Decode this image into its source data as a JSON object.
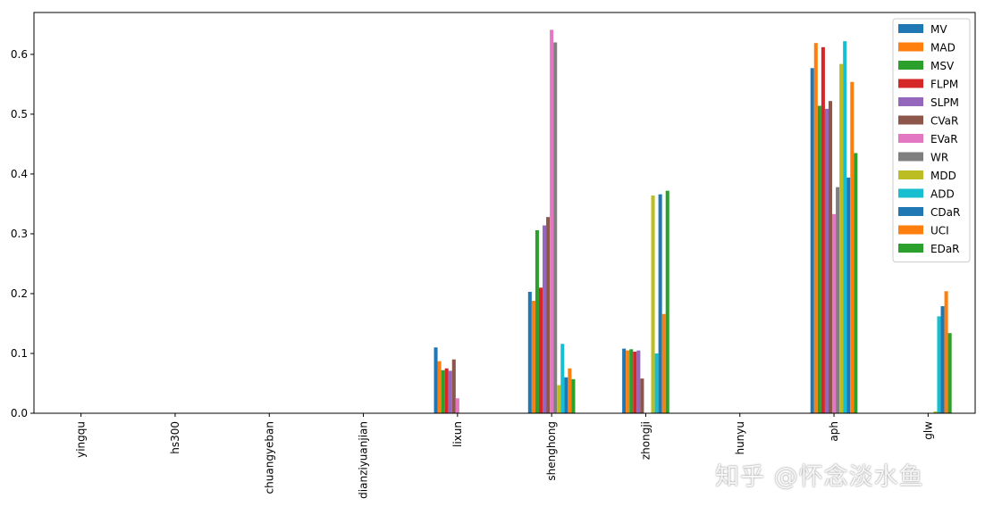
{
  "watermark": "知乎 @怀念淡水鱼",
  "chart_data": {
    "type": "bar",
    "categories": [
      "yingqu",
      "hs300",
      "chuangyeban",
      "dianziyuanjian",
      "lixun",
      "shenghong",
      "zhongji",
      "hunyu",
      "aph",
      "glw"
    ],
    "ylim": [
      0,
      0.67
    ],
    "yticks": [
      "0.0",
      "0.1",
      "0.2",
      "0.3",
      "0.4",
      "0.5",
      "0.6"
    ],
    "legend_position": "top-right",
    "grid": false,
    "series": [
      {
        "name": "MV",
        "color": "#1f77b4",
        "values": [
          0,
          0,
          0,
          0,
          0.11,
          0.203,
          0.108,
          0,
          0.577,
          0
        ]
      },
      {
        "name": "MAD",
        "color": "#ff7f0e",
        "values": [
          0,
          0,
          0,
          0,
          0.087,
          0.188,
          0.105,
          0,
          0.619,
          0
        ]
      },
      {
        "name": "MSV",
        "color": "#2ca02c",
        "values": [
          0,
          0,
          0,
          0,
          0.072,
          0.306,
          0.107,
          0,
          0.514,
          0
        ]
      },
      {
        "name": "FLPM",
        "color": "#d62728",
        "values": [
          0,
          0,
          0,
          0,
          0.075,
          0.21,
          0.103,
          0,
          0.612,
          0
        ]
      },
      {
        "name": "SLPM",
        "color": "#9467bd",
        "values": [
          0,
          0,
          0,
          0,
          0.071,
          0.314,
          0.105,
          0,
          0.509,
          0
        ]
      },
      {
        "name": "CVaR",
        "color": "#8c564b",
        "values": [
          0,
          0,
          0,
          0,
          0.09,
          0.328,
          0.058,
          0,
          0.522,
          0
        ]
      },
      {
        "name": "EVaR",
        "color": "#e377c2",
        "values": [
          0,
          0,
          0,
          0,
          0.025,
          0.641,
          0,
          0,
          0.333,
          0
        ]
      },
      {
        "name": "WR",
        "color": "#7f7f7f",
        "values": [
          0,
          0,
          0,
          0,
          0,
          0.62,
          0,
          0,
          0.378,
          0
        ]
      },
      {
        "name": "MDD",
        "color": "#bcbd22",
        "values": [
          0,
          0,
          0,
          0,
          0,
          0.047,
          0.364,
          0,
          0.584,
          0.003
        ]
      },
      {
        "name": "ADD",
        "color": "#17becf",
        "values": [
          0,
          0,
          0,
          0,
          0,
          0.116,
          0.1,
          0,
          0.622,
          0.162
        ]
      },
      {
        "name": "CDaR",
        "color": "#1f77b4",
        "values": [
          0,
          0,
          0,
          0,
          0,
          0.06,
          0.366,
          0,
          0.394,
          0.179
        ]
      },
      {
        "name": "UCI",
        "color": "#ff7f0e",
        "values": [
          0,
          0,
          0,
          0,
          0,
          0.075,
          0.166,
          0,
          0.554,
          0.204
        ]
      },
      {
        "name": "EDaR",
        "color": "#2ca02c",
        "values": [
          0,
          0,
          0,
          0,
          0,
          0.057,
          0.372,
          0,
          0.435,
          0.134
        ]
      }
    ]
  }
}
